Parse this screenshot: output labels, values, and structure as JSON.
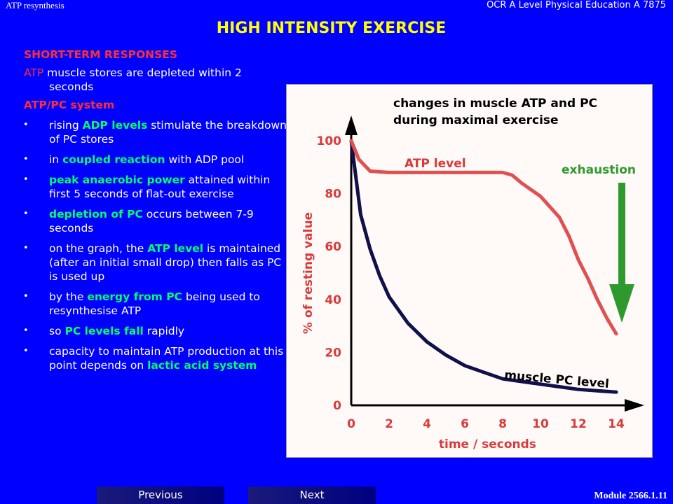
{
  "header": {
    "left": "ATP resynthesis",
    "right": "OCR A Level Physical Education A 7875"
  },
  "title": "HIGH INTENSITY EXERCISE",
  "content": {
    "section_title": "SHORT-TERM RESPONSES",
    "atp_para": {
      "term": "ATP",
      "text": " muscle stores are depleted within 2 seconds"
    },
    "subsection": "ATP/PC system",
    "bullets": [
      {
        "pre": "rising ",
        "hl": "ADP levels",
        "post": " stimulate the breakdown of PC stores"
      },
      {
        "pre": "in ",
        "hl": "coupled reaction",
        "post": " with ADP pool"
      },
      {
        "pre": "",
        "hl": "peak anaerobic power",
        "post": " attained within first 5 seconds of flat-out exercise"
      },
      {
        "pre": "",
        "hl": "depletion of PC",
        "post": " occurs between 7-9 seconds"
      },
      {
        "pre": "on the graph, the ",
        "hl": "ATP level",
        "post": " is maintained (after an initial small drop) then falls as PC is used up"
      },
      {
        "pre": "by the ",
        "hl": "energy from PC",
        "post": " being used to resynthesise ATP"
      },
      {
        "pre": "so ",
        "hl": "PC levels fall",
        "post": " rapidly"
      },
      {
        "pre": "capacity to maintain ATP production at this point depends on ",
        "hl": "lactic acid system",
        "post": ""
      }
    ]
  },
  "chart_data": {
    "type": "line",
    "title": "changes in muscle ATP and PC during maximal exercise",
    "title_lines": [
      "changes in muscle ATP and PC",
      "during maximal exercise"
    ],
    "xlabel": "time / seconds",
    "ylabel": "% of resting value",
    "xlim": [
      0,
      14.5
    ],
    "ylim": [
      0,
      105
    ],
    "x_ticks": [
      0,
      2,
      4,
      6,
      8,
      10,
      12,
      14
    ],
    "y_ticks": [
      0,
      20,
      40,
      60,
      80,
      100
    ],
    "annotation": "exhaustion",
    "series": [
      {
        "name": "ATP level",
        "color": "#e05050",
        "points": [
          [
            0,
            100
          ],
          [
            0.4,
            93
          ],
          [
            1,
            88.5
          ],
          [
            2,
            88
          ],
          [
            4,
            88
          ],
          [
            6,
            88
          ],
          [
            8,
            88
          ],
          [
            8.5,
            87
          ],
          [
            9,
            84
          ],
          [
            10,
            79
          ],
          [
            11,
            71
          ],
          [
            11.5,
            64
          ],
          [
            12,
            55
          ],
          [
            12.5,
            48
          ],
          [
            13,
            40
          ],
          [
            13.5,
            33
          ],
          [
            14,
            27
          ]
        ]
      },
      {
        "name": "muscle PC level",
        "color": "#10104a",
        "points": [
          [
            0,
            100
          ],
          [
            0.5,
            72
          ],
          [
            1,
            59
          ],
          [
            1.5,
            49
          ],
          [
            2,
            41
          ],
          [
            2.5,
            36
          ],
          [
            3,
            31
          ],
          [
            4,
            24
          ],
          [
            5,
            19
          ],
          [
            6,
            15
          ],
          [
            7,
            12.5
          ],
          [
            8,
            10
          ],
          [
            9,
            9
          ],
          [
            10,
            8
          ],
          [
            11,
            7
          ],
          [
            12,
            6
          ],
          [
            13,
            5.5
          ],
          [
            14,
            5
          ]
        ]
      }
    ],
    "colors": {
      "axis": "#000000",
      "labels": "#d93a3a",
      "title": "#000000",
      "exhaustion": "#2e9a2e"
    }
  },
  "footer": {
    "module": "Module 2566.1.11",
    "previous": "Previous",
    "next": "Next"
  }
}
